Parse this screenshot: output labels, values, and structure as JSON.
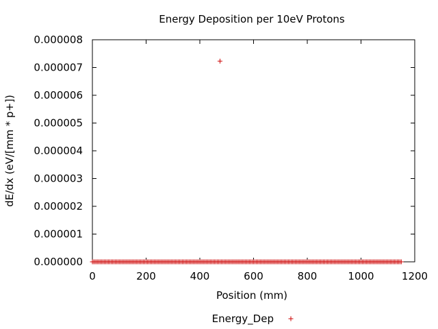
{
  "chart_data": {
    "type": "scatter",
    "title": "Energy Deposition per 10eV Protons",
    "xlabel": "Position (mm)",
    "ylabel": "dE/dx (eV/[mm * p+])",
    "xlim": [
      0,
      1200
    ],
    "ylim": [
      0,
      8e-06
    ],
    "x_ticks": [
      0,
      200,
      400,
      600,
      800,
      1000,
      1200
    ],
    "x_tick_labels": [
      "0",
      "200",
      "400",
      "600",
      "800",
      "1000",
      "1200"
    ],
    "y_ticks": [
      0,
      1e-06,
      2e-06,
      3e-06,
      4e-06,
      5e-06,
      6e-06,
      7e-06,
      8e-06
    ],
    "y_tick_labels": [
      "0.000000",
      "0.000001",
      "0.000002",
      "0.000003",
      "0.000004",
      "0.000005",
      "0.000006",
      "0.000007",
      "0.000008"
    ],
    "grid": false,
    "legend_position": "bottom-center",
    "series": [
      {
        "name": "Energy_Dep",
        "color": "#cc0000",
        "marker": "plus",
        "outlier_points": [
          {
            "x": 475,
            "y": 7.23e-06
          }
        ],
        "baseline": {
          "x_start": 0,
          "x_end": 1150,
          "step": 5,
          "y": 0
        }
      }
    ]
  }
}
